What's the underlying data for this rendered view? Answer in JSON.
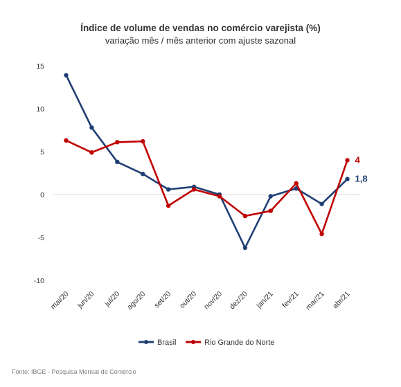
{
  "chart_data": {
    "type": "line",
    "title": "Índice de volume de vendas no comércio varejista (%)",
    "subtitle": "variação mês / mês anterior com ajuste sazonal",
    "categories": [
      "mai/20",
      "jun/20",
      "jul/20",
      "ago/20",
      "set/20",
      "out/20",
      "nov/20",
      "dez/20",
      "jan/21",
      "fev/21",
      "mar/21",
      "abr/21"
    ],
    "ylim": [
      -10,
      15
    ],
    "yticks": [
      15,
      10,
      5,
      0,
      -5,
      -10
    ],
    "ytick_labels": [
      "15",
      "10",
      "5",
      "0",
      "-5",
      "-10"
    ],
    "grid": false,
    "legend_position": "bottom",
    "series": [
      {
        "name": "Brasil",
        "color": "#1f3f74",
        "values": [
          13.9,
          7.8,
          3.8,
          2.4,
          0.6,
          0.9,
          0.0,
          -6.2,
          -0.2,
          0.7,
          -1.1,
          1.8
        ],
        "end_label": "1,8"
      },
      {
        "name": "Rio Grande do Norte",
        "color": "#c00000",
        "values": [
          6.3,
          4.9,
          6.1,
          6.2,
          -1.3,
          0.6,
          -0.2,
          -2.5,
          -1.9,
          1.3,
          -4.6,
          4.0
        ],
        "end_label": "4"
      }
    ],
    "source": "Fonte: IBGE - Pesquisa Mensal de Comércio"
  }
}
